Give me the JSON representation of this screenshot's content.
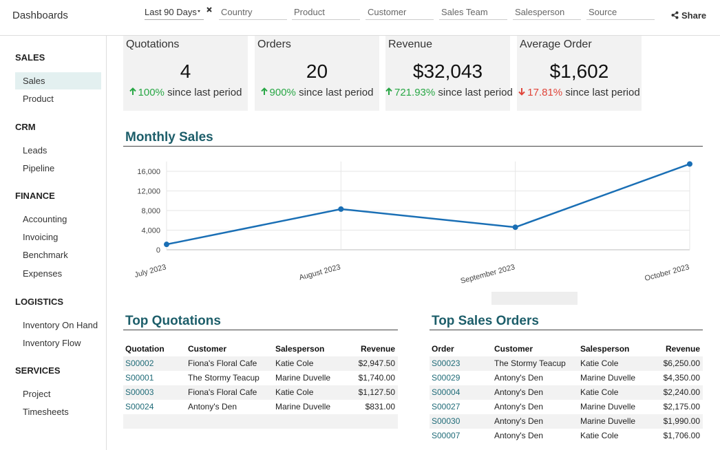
{
  "header": {
    "title": "Dashboards",
    "filters": [
      "Last 90 Days",
      "Country",
      "Product",
      "Customer",
      "Sales Team",
      "Salesperson",
      "Source"
    ],
    "share": "Share"
  },
  "sidebar": [
    {
      "title": "SALES",
      "items": [
        "Sales",
        "Product"
      ],
      "active": 0
    },
    {
      "title": "CRM",
      "items": [
        "Leads",
        "Pipeline"
      ]
    },
    {
      "title": "FINANCE",
      "items": [
        "Accounting",
        "Invoicing",
        "Benchmark",
        "Expenses"
      ]
    },
    {
      "title": "LOGISTICS",
      "items": [
        "Inventory On Hand",
        "Inventory Flow"
      ]
    },
    {
      "title": "SERVICES",
      "items": [
        "Project",
        "Timesheets"
      ]
    }
  ],
  "kpis": [
    {
      "title": "Quotations",
      "value": "4",
      "change": "100%",
      "note": "since last period",
      "direction": "up"
    },
    {
      "title": "Orders",
      "value": "20",
      "change": "900%",
      "note": "since last period",
      "direction": "up"
    },
    {
      "title": "Revenue",
      "value": "$32,043",
      "change": "721.93%",
      "note": "since last period",
      "direction": "up"
    },
    {
      "title": "Average Order",
      "value": "$1,602",
      "change": "17.81%",
      "note": "since last period",
      "direction": "down"
    }
  ],
  "chart_data": {
    "type": "line",
    "title": "Monthly Sales",
    "categories": [
      "July 2023",
      "August 2023",
      "September 2023",
      "October 2023"
    ],
    "values": [
      1100,
      8300,
      4600,
      17500
    ],
    "color": "#1a6fb5",
    "ylim": [
      0,
      18000
    ],
    "yticks": [
      0,
      {
        "value": 4000,
        "label": "4,000"
      },
      {
        "value": 8000,
        "label": "8,000"
      },
      {
        "value": 12000,
        "label": "12,000"
      },
      {
        "value": 16000,
        "label": "16,000"
      }
    ],
    "grid": true
  },
  "top_quotations": {
    "title": "Top Quotations",
    "columns": [
      "Quotation",
      "Customer",
      "Salesperson",
      "Revenue"
    ],
    "rows": [
      [
        "S00002",
        "Fiona's Floral Cafe",
        "Katie Cole",
        "$2,947.50"
      ],
      [
        "S00001",
        "The Stormy Teacup",
        "Marine Duvelle",
        "$1,740.00"
      ],
      [
        "S00003",
        "Fiona's Floral Cafe",
        "Katie Cole",
        "$1,127.50"
      ],
      [
        "S00024",
        "Antony's Den",
        "Marine Duvelle",
        "$831.00"
      ]
    ]
  },
  "top_sales_orders": {
    "title": "Top Sales Orders",
    "columns": [
      "Order",
      "Customer",
      "Salesperson",
      "Revenue"
    ],
    "rows": [
      [
        "S00023",
        "The Stormy Teacup",
        "Katie Cole",
        "$6,250.00"
      ],
      [
        "S00029",
        "Antony's Den",
        "Marine Duvelle",
        "$4,350.00"
      ],
      [
        "S00004",
        "Antony's Den",
        "Katie Cole",
        "$2,240.00"
      ],
      [
        "S00027",
        "Antony's Den",
        "Marine Duvelle",
        "$2,175.00"
      ],
      [
        "S00030",
        "Antony's Den",
        "Marine Duvelle",
        "$1,990.00"
      ],
      [
        "S00007",
        "Antony's Den",
        "Katie Cole",
        "$1,706.00"
      ]
    ]
  }
}
